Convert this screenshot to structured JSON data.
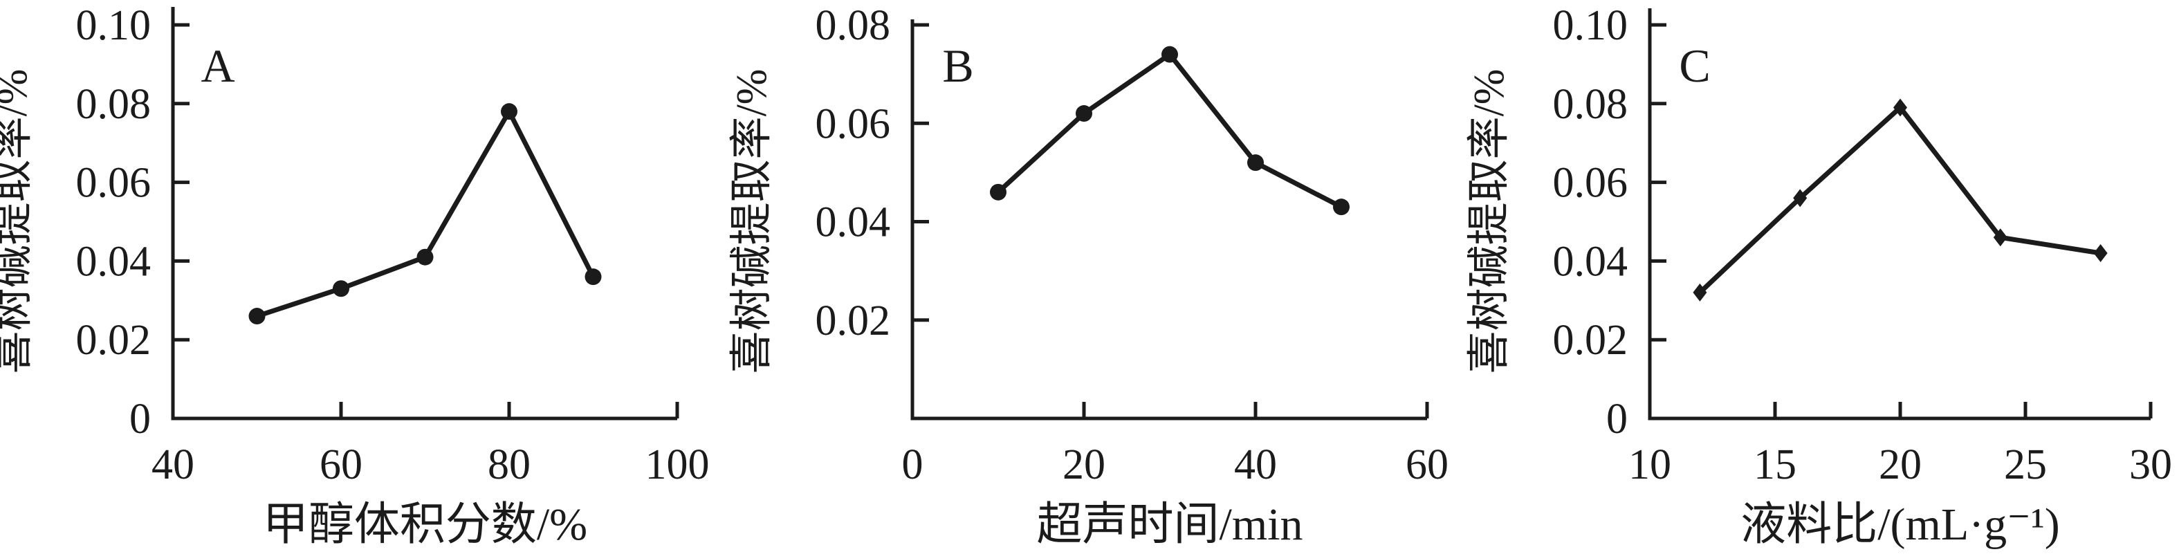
{
  "figure": {
    "background_color": "#ffffff",
    "ink_color": "#1b1b1b",
    "description_texts": {
      "shared_ylabel": "喜树碱提取率/%"
    }
  },
  "chart_data": [
    {
      "type": "line",
      "panel_label": "A",
      "x": [
        50,
        60,
        70,
        80,
        90
      ],
      "y": [
        0.026,
        0.033,
        0.041,
        0.078,
        0.036
      ],
      "series": [
        {
          "name": "camptothecin-extraction-rate",
          "values": [
            0.026,
            0.033,
            0.041,
            0.078,
            0.036
          ]
        }
      ],
      "title": "",
      "xlabel": "甲醇体积分数/%",
      "ylabel": "喜树碱提取率/%",
      "xlim": [
        40,
        100
      ],
      "ylim": [
        0,
        0.1
      ],
      "xticks": [
        40,
        60,
        80,
        100
      ],
      "xtick_labels": [
        "40",
        "60",
        "80",
        "100"
      ],
      "yticks": [
        0,
        0.02,
        0.04,
        0.06,
        0.08,
        0.1
      ],
      "ytick_labels": [
        "0",
        "0.02",
        "0.04",
        "0.06",
        "0.08",
        "0.10"
      ],
      "marker": "circle",
      "grid": false,
      "legend": null,
      "line_color": "#1b1b1b"
    },
    {
      "type": "line",
      "panel_label": "B",
      "x": [
        10,
        20,
        30,
        40,
        50
      ],
      "y": [
        0.046,
        0.062,
        0.074,
        0.052,
        0.043
      ],
      "series": [
        {
          "name": "camptothecin-extraction-rate",
          "values": [
            0.046,
            0.062,
            0.074,
            0.052,
            0.043
          ]
        }
      ],
      "title": "",
      "xlabel": "超声时间/min",
      "ylabel": "喜树碱提取率/%",
      "xlim": [
        0,
        60
      ],
      "ylim": [
        0,
        0.08
      ],
      "xticks": [
        0,
        20,
        40,
        60
      ],
      "xtick_labels": [
        "0",
        "20",
        "40",
        "60"
      ],
      "yticks": [
        0.02,
        0.04,
        0.06,
        0.08
      ],
      "ytick_labels": [
        "0.02",
        "0.04",
        "0.06",
        "0.08"
      ],
      "marker": "circle",
      "grid": false,
      "legend": null,
      "line_color": "#1b1b1b"
    },
    {
      "type": "line",
      "panel_label": "C",
      "x": [
        12,
        16,
        20,
        24,
        28
      ],
      "y": [
        0.032,
        0.056,
        0.079,
        0.046,
        0.042
      ],
      "series": [
        {
          "name": "camptothecin-extraction-rate",
          "values": [
            0.032,
            0.056,
            0.079,
            0.046,
            0.042
          ]
        }
      ],
      "title": "",
      "xlabel": "液料比/(mL·g⁻¹)",
      "ylabel": "喜树碱提取率/%",
      "xlim": [
        10,
        30
      ],
      "ylim": [
        0,
        0.1
      ],
      "xticks": [
        10,
        15,
        20,
        25,
        30
      ],
      "xtick_labels": [
        "10",
        "15",
        "20",
        "25",
        "30"
      ],
      "yticks": [
        0,
        0.02,
        0.04,
        0.06,
        0.08,
        0.1
      ],
      "ytick_labels": [
        "0",
        "0.02",
        "0.04",
        "0.06",
        "0.08",
        "0.10"
      ],
      "marker": "diamond",
      "grid": false,
      "legend": null,
      "line_color": "#1b1b1b"
    }
  ]
}
